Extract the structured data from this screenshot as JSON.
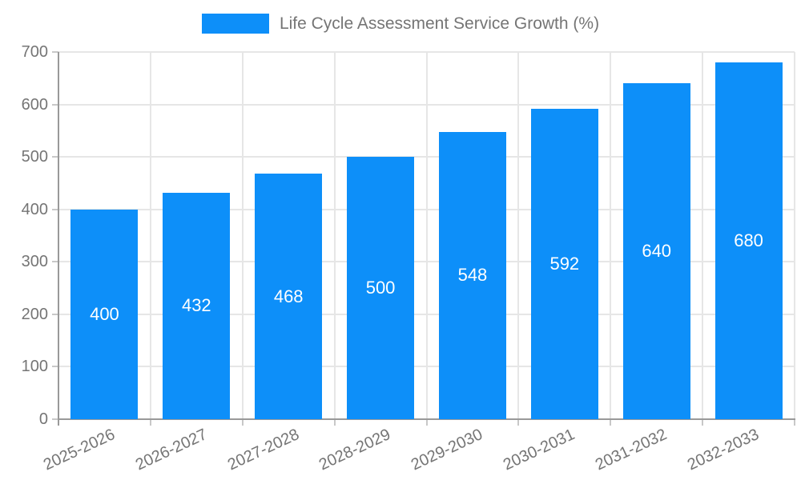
{
  "legend": {
    "label": "Life Cycle Assessment Service Growth (%)",
    "swatch_color": "#0d8ff9"
  },
  "chart_data": {
    "type": "bar",
    "title": "Life Cycle Assessment Service Growth (%)",
    "categories": [
      "2025-2026",
      "2026-2027",
      "2027-2028",
      "2028-2029",
      "2029-2030",
      "2030-2031",
      "2031-2032",
      "2032-2033"
    ],
    "values": [
      400,
      432,
      468,
      500,
      548,
      592,
      640,
      680
    ],
    "xlabel": "",
    "ylabel": "",
    "ylim": [
      0,
      700
    ],
    "yticks": [
      0,
      100,
      200,
      300,
      400,
      500,
      600,
      700
    ],
    "grid": true,
    "legend_position": "top-center",
    "x_label_rotation_deg": -25,
    "colors": {
      "bar": "#0d8ff9",
      "value_label": "#ffffff",
      "axis": "#999999",
      "gridline": "#e6e6e6",
      "tick": "#c8c8c8",
      "tick_label": "#757575"
    }
  }
}
